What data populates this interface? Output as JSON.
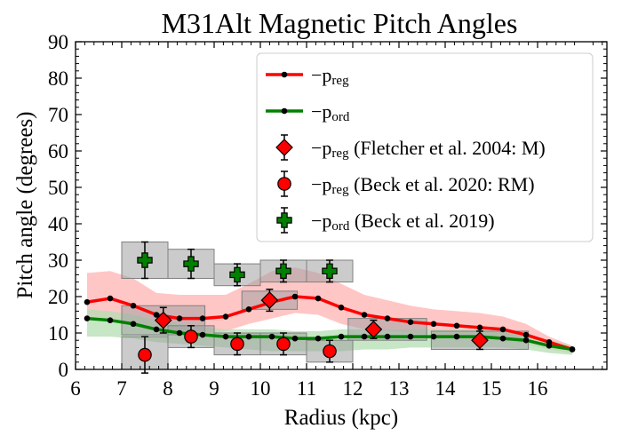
{
  "chart_data": {
    "type": "line",
    "title": "M31Alt Magnetic Pitch Angles",
    "xlabel": "Radius (kpc)",
    "ylabel": "Pitch angle (degrees)",
    "xlim": [
      6,
      17.5
    ],
    "ylim": [
      0,
      90
    ],
    "xticks": [
      "6",
      "7",
      "8",
      "9",
      "10",
      "11",
      "12",
      "13",
      "14",
      "15",
      "16"
    ],
    "yticks": [
      "0",
      "10",
      "20",
      "30",
      "40",
      "50",
      "60",
      "70",
      "80",
      "90"
    ],
    "grid": false,
    "legend_position": "top-right",
    "series": [
      {
        "name_prefix": "−p",
        "name_sub": "reg",
        "name_suffix": "",
        "kind": "line",
        "color": "#ff0000",
        "band_color": "#ffb3b3",
        "x": [
          6.25,
          6.75,
          7.25,
          7.75,
          8.25,
          8.75,
          9.25,
          9.75,
          10.25,
          10.75,
          11.25,
          11.75,
          12.25,
          12.75,
          13.25,
          13.75,
          14.25,
          14.75,
          15.25,
          15.75,
          16.25,
          16.75
        ],
        "y": [
          18.5,
          19.5,
          17.5,
          15.0,
          14.0,
          14.0,
          14.5,
          16.5,
          18.5,
          20.0,
          19.5,
          17.0,
          15.0,
          14.0,
          13.0,
          12.5,
          12.0,
          11.5,
          11.0,
          9.5,
          7.5,
          5.5
        ],
        "band_upper": [
          26.5,
          27.0,
          25.0,
          21.0,
          20.5,
          20.5,
          20.5,
          23.5,
          27.0,
          28.0,
          26.5,
          23.5,
          20.5,
          19.0,
          17.5,
          16.5,
          16.0,
          15.5,
          14.5,
          12.5,
          9.0,
          6.5
        ],
        "band_lower": [
          13.5,
          14.0,
          12.5,
          10.5,
          9.5,
          9.5,
          10.5,
          12.5,
          14.0,
          15.5,
          15.0,
          12.5,
          11.0,
          10.5,
          10.0,
          9.5,
          9.0,
          8.5,
          8.0,
          7.0,
          5.5,
          4.5
        ]
      },
      {
        "name_prefix": "−p",
        "name_sub": "ord",
        "name_suffix": "",
        "kind": "line",
        "color": "#008000",
        "band_color": "#b3deb3",
        "x": [
          6.25,
          6.75,
          7.25,
          7.75,
          8.25,
          8.75,
          9.25,
          9.75,
          10.25,
          10.75,
          11.25,
          11.75,
          12.25,
          12.75,
          13.25,
          13.75,
          14.25,
          14.75,
          15.25,
          15.75,
          16.25,
          16.75
        ],
        "y": [
          14.0,
          13.5,
          12.5,
          11.0,
          10.0,
          9.5,
          9.0,
          9.0,
          9.0,
          8.5,
          8.5,
          9.0,
          9.0,
          9.0,
          9.0,
          9.0,
          9.0,
          9.0,
          8.5,
          8.0,
          6.5,
          5.5
        ],
        "band_upper": [
          16.5,
          16.0,
          15.0,
          13.5,
          12.5,
          11.5,
          11.0,
          11.0,
          11.0,
          10.5,
          10.5,
          11.0,
          11.0,
          11.0,
          11.0,
          11.0,
          11.0,
          11.0,
          10.5,
          9.5,
          8.0,
          6.5
        ],
        "band_lower": [
          9.0,
          9.0,
          8.5,
          7.5,
          7.0,
          6.5,
          6.0,
          5.5,
          5.0,
          5.0,
          5.0,
          5.0,
          5.5,
          5.5,
          6.0,
          6.0,
          6.0,
          6.0,
          6.0,
          5.5,
          4.5,
          4.0
        ]
      },
      {
        "name_prefix": "−p",
        "name_sub": "reg",
        "name_suffix": " (Fletcher et al. 2004: M)",
        "kind": "errorbar",
        "marker": "diamond",
        "color": "#ff0000",
        "x": [
          7.9,
          10.2,
          12.45,
          14.75
        ],
        "y": [
          13.5,
          19.0,
          11.0,
          8.0
        ],
        "yerr": [
          3.5,
          3.0,
          2.5,
          2.5
        ],
        "x_low": [
          7.0,
          9.6,
          11.9,
          13.7
        ],
        "x_high": [
          8.8,
          10.8,
          13.6,
          15.8
        ],
        "box_low": [
          9.5,
          16.5,
          8.0,
          5.5
        ],
        "box_high": [
          17.5,
          21.5,
          14.0,
          10.5
        ]
      },
      {
        "name_prefix": "−p",
        "name_sub": "reg",
        "name_suffix": " (Beck et al. 2020: RM)",
        "kind": "errorbar",
        "marker": "circle",
        "color": "#ff0000",
        "x": [
          7.5,
          8.5,
          9.5,
          10.5,
          11.5
        ],
        "y": [
          4.0,
          9.0,
          7.0,
          7.0,
          5.0
        ],
        "yerr": [
          5.0,
          3.0,
          3.0,
          3.0,
          3.0
        ],
        "x_low": [
          7.0,
          8.0,
          9.0,
          10.0,
          11.0
        ],
        "x_high": [
          8.0,
          9.0,
          10.0,
          11.0,
          12.0
        ],
        "box_low": [
          0.0,
          6.0,
          4.0,
          4.0,
          2.0
        ],
        "box_high": [
          9.0,
          12.0,
          10.0,
          10.0,
          8.0
        ]
      },
      {
        "name_prefix": "−p",
        "name_sub": "ord",
        "name_suffix": " (Beck et al. 2019)",
        "kind": "errorbar",
        "marker": "plus",
        "color": "#008000",
        "x": [
          7.5,
          8.5,
          9.5,
          10.5,
          11.5
        ],
        "y": [
          30.0,
          29.0,
          26.0,
          27.0,
          27.0
        ],
        "yerr": [
          5.0,
          4.0,
          3.0,
          3.0,
          3.0
        ],
        "x_low": [
          7.0,
          8.0,
          9.0,
          10.0,
          11.0
        ],
        "x_high": [
          8.0,
          9.0,
          10.0,
          11.0,
          12.0
        ],
        "box_low": [
          25.0,
          25.0,
          23.0,
          24.0,
          24.0
        ],
        "box_high": [
          35.0,
          33.0,
          29.0,
          30.0,
          30.0
        ]
      }
    ]
  }
}
